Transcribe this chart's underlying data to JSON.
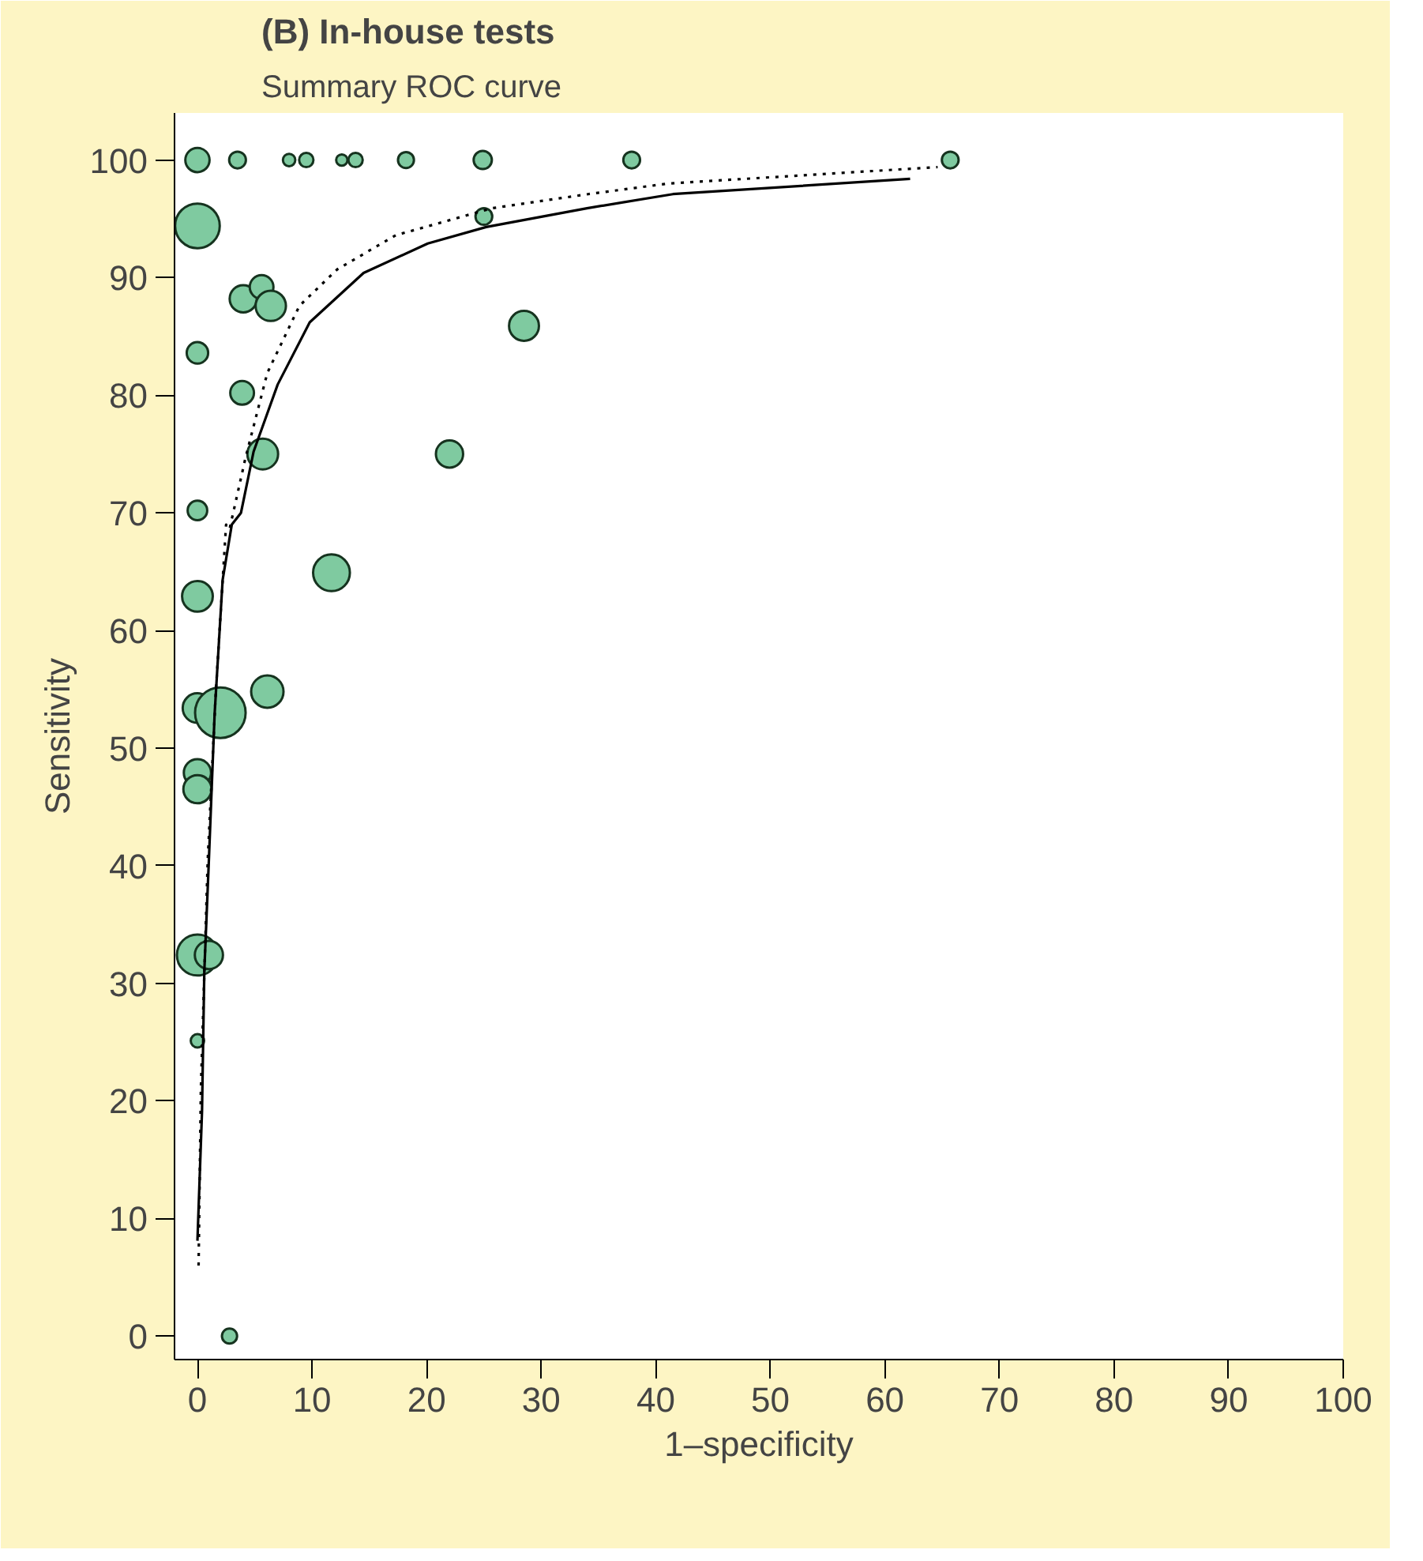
{
  "chart_data": {
    "type": "bubble",
    "title": "(B) In-house tests",
    "subtitle": "Summary ROC curve",
    "xlabel": "1–specificity",
    "ylabel": "Sensitivity",
    "xlim": [
      -2,
      100
    ],
    "ylim": [
      -2,
      104
    ],
    "xticks": [
      0,
      10,
      20,
      30,
      40,
      50,
      60,
      70,
      80,
      90,
      100
    ],
    "yticks": [
      0,
      10,
      20,
      30,
      40,
      50,
      60,
      70,
      80,
      90,
      100
    ],
    "grid": false,
    "series": [
      {
        "color": "#7fcaa0",
        "x": [
          0,
          3.5,
          8,
          9.5,
          12.6,
          13.8,
          18.2,
          24.9,
          37.9,
          65.7,
          0,
          25,
          4,
          5.6,
          6.4,
          28.5,
          0,
          3.9,
          5.7,
          22,
          0,
          0,
          11.7,
          6.1,
          0,
          2,
          0,
          0,
          0,
          1,
          0,
          2.8
        ],
        "values": [
          100,
          100,
          100,
          100,
          100,
          100,
          100,
          100,
          100,
          100,
          94.4,
          95.2,
          88.2,
          89.2,
          87.6,
          85.9,
          83.6,
          80.2,
          75,
          75,
          70.2,
          62.9,
          64.9,
          54.8,
          53.4,
          53,
          47.9,
          46.5,
          32.4,
          32.4,
          25.1,
          0
        ],
        "sizes": [
          0.23,
          0.11,
          0.06,
          0.08,
          0.05,
          0.08,
          0.1,
          0.13,
          0.11,
          0.11,
          0.78,
          0.11,
          0.29,
          0.22,
          0.36,
          0.35,
          0.18,
          0.22,
          0.37,
          0.29,
          0.15,
          0.37,
          0.53,
          0.41,
          0.34,
          1,
          0.29,
          0.31,
          0.66,
          0.31,
          0.07,
          0.09
        ]
      },
      {
        "type": "line",
        "line_style": "solid",
        "color": "#000000",
        "x": [
          0,
          0.4,
          0.6,
          1.0,
          1.5,
          2.2,
          3.0,
          3.8,
          4.9,
          7,
          9.8,
          14.5,
          20.1,
          25.2,
          34,
          41.5,
          62.2
        ],
        "values": [
          8.1,
          19.1,
          31,
          40.5,
          52.9,
          64.3,
          69,
          70,
          75.2,
          80.9,
          86.2,
          90.4,
          92.9,
          94.3,
          95.9,
          97.1,
          98.4
        ]
      },
      {
        "type": "line",
        "line_style": "dotted",
        "color": "#000000",
        "x": [
          0.1,
          0.3,
          0.9,
          1.6,
          2.5,
          2.8,
          4.2,
          6.1,
          8.9,
          12.2,
          17.3,
          25.7,
          34.1,
          41.1,
          64.6
        ],
        "values": [
          6,
          21,
          40.5,
          54.7,
          69,
          68.6,
          74.7,
          81.9,
          87.6,
          90.7,
          93.6,
          95.9,
          97.1,
          98,
          99.4
        ]
      }
    ]
  }
}
